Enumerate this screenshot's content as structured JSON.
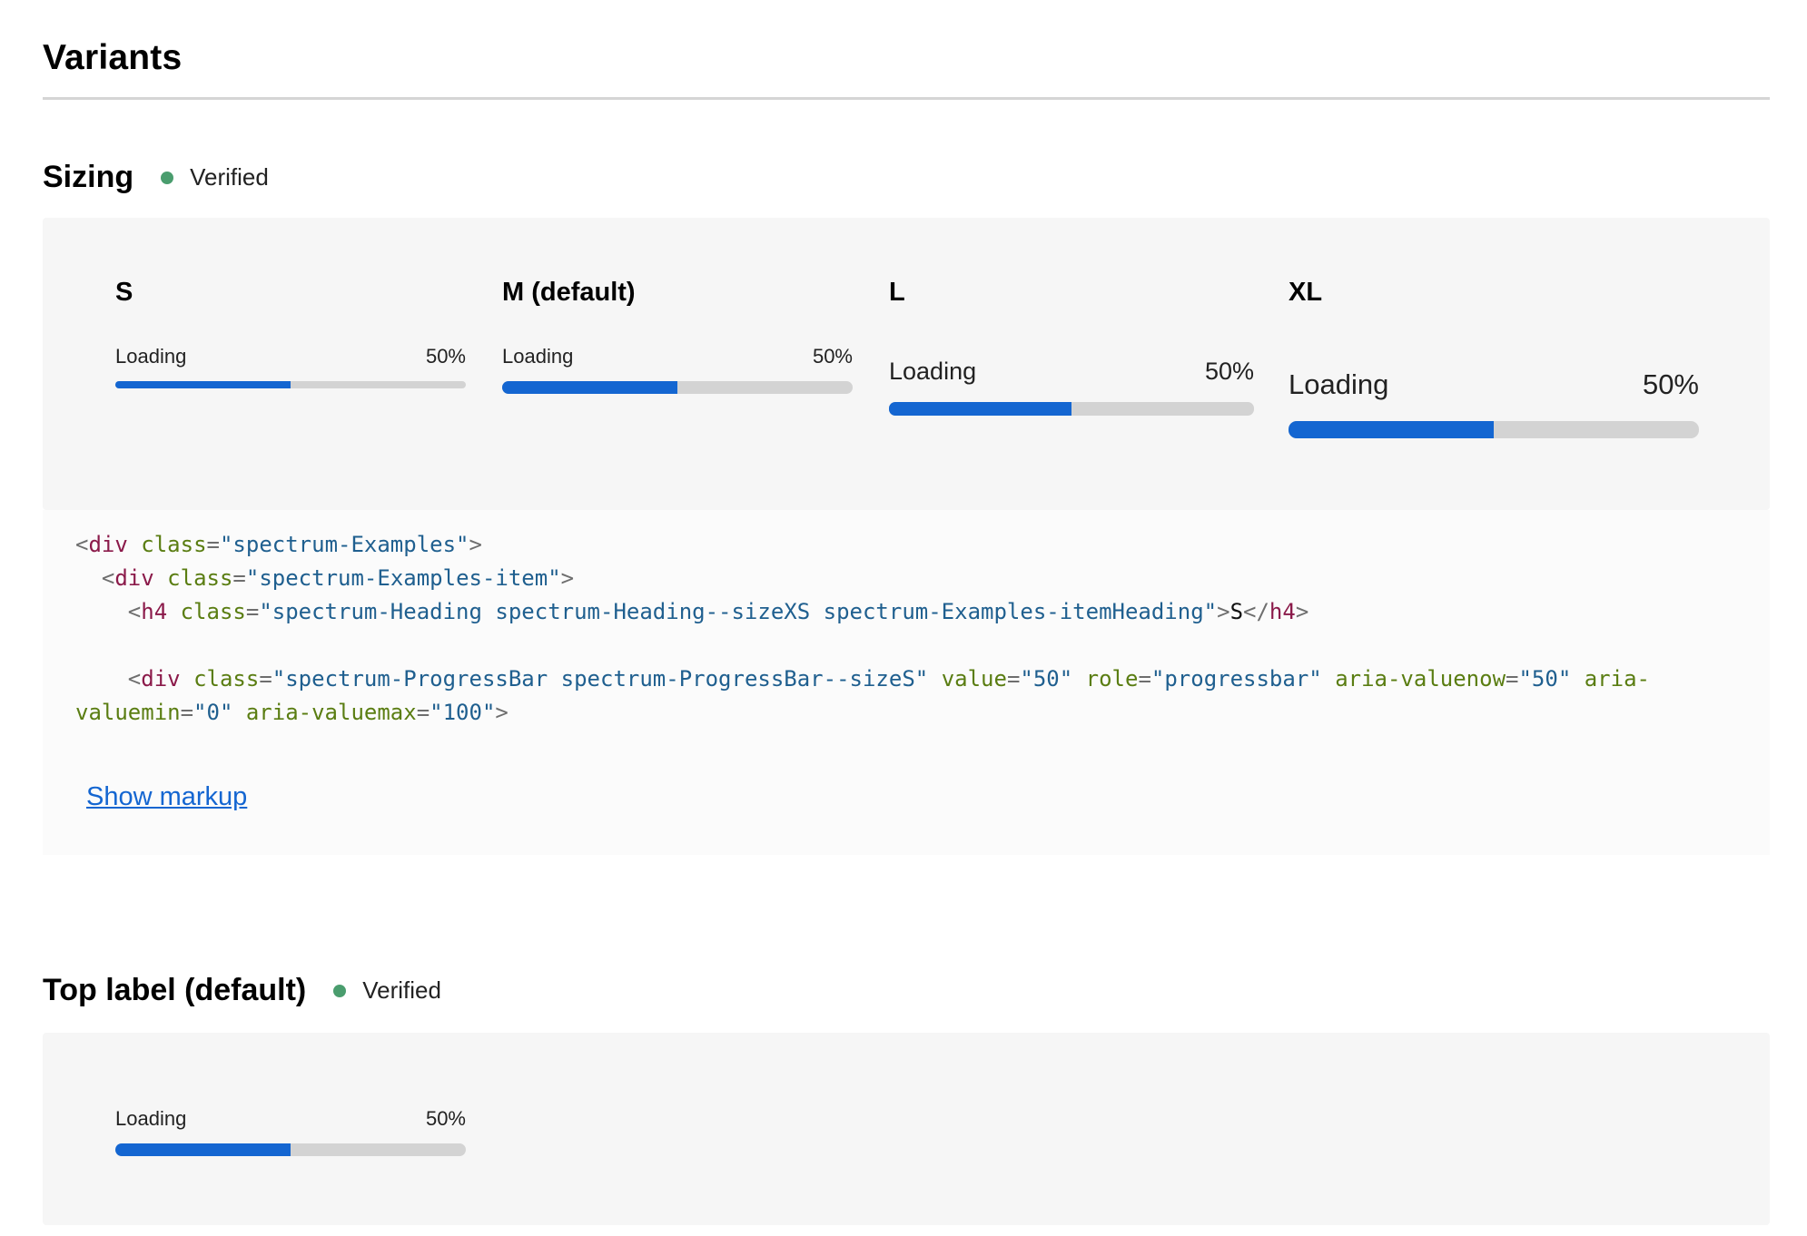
{
  "page": {
    "title": "Variants"
  },
  "sizing": {
    "title": "Sizing",
    "status": "Verified",
    "status_color": "#4a9d6e",
    "items": [
      {
        "heading": "S",
        "label": "Loading",
        "value_text": "50%",
        "progress": 0.5
      },
      {
        "heading": "M (default)",
        "label": "Loading",
        "value_text": "50%",
        "progress": 0.5
      },
      {
        "heading": "L",
        "label": "Loading",
        "value_text": "50%",
        "progress": 0.5
      },
      {
        "heading": "XL",
        "label": "Loading",
        "value_text": "50%",
        "progress": 0.5
      }
    ],
    "code": {
      "line1": {
        "open": "<",
        "tag": "div",
        "sp": " ",
        "attr": "class",
        "eq": "=",
        "val": "\"spectrum-Examples\"",
        "close": ">"
      },
      "line2": {
        "indent": "  ",
        "open": "<",
        "tag": "div",
        "sp": " ",
        "attr": "class",
        "eq": "=",
        "val": "\"spectrum-Examples-item\"",
        "close": ">"
      },
      "line3": {
        "indent": "    ",
        "open": "<",
        "tag": "h4",
        "sp": " ",
        "attr": "class",
        "eq": "=",
        "val": "\"spectrum-Heading spectrum-Heading--sizeXS spectrum-Examples-itemHeading\"",
        "close": ">",
        "text": "S",
        "end_open": "</",
        "end_tag": "h4",
        "end_close": ">"
      },
      "line5": {
        "indent": "    ",
        "open": "<",
        "tag": "div",
        "a1": "class",
        "v1": "\"spectrum-ProgressBar spectrum-ProgressBar--sizeS\"",
        "a2": "value",
        "v2": "\"50\"",
        "a3": "role",
        "v3": "\"progressbar\"",
        "a4": "aria-valuenow",
        "v4": "\"50\"",
        "a5": "aria-valuemin",
        "v5": "\"0\"",
        "a6": "aria-valuemax",
        "v6": "\"100\"",
        "close": ">"
      }
    },
    "show_markup": "Show markup"
  },
  "top_label": {
    "title": "Top label (default)",
    "status": "Verified",
    "item": {
      "label": "Loading",
      "value_text": "50%",
      "progress": 0.5
    }
  },
  "colors": {
    "accent": "#1466d1",
    "track": "#d3d3d3"
  }
}
